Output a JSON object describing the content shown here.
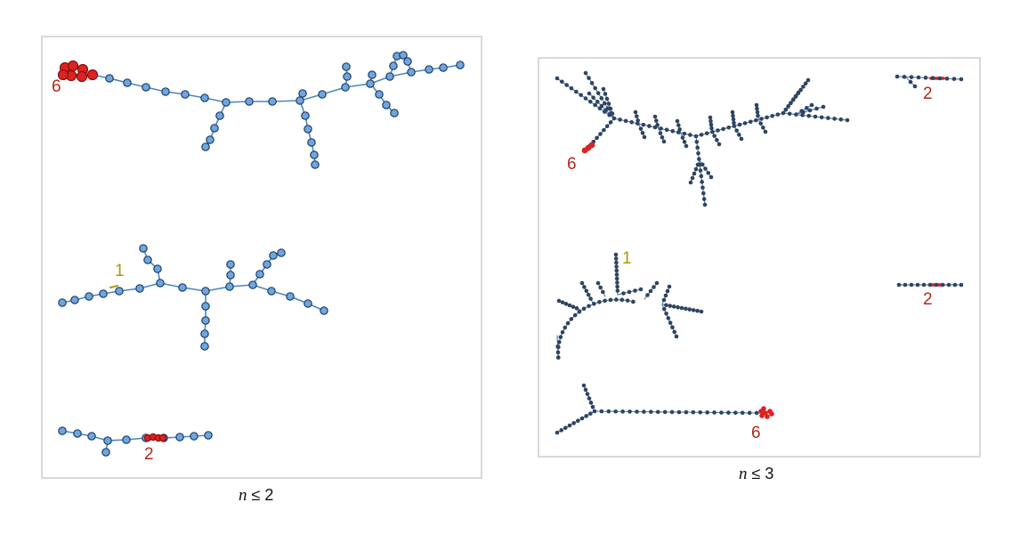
{
  "colors": {
    "left_node": "#6fa6de",
    "left_node_stroke": "#1f3f66",
    "left_edge": "#4d86c0",
    "right_node": "#2e4460",
    "right_edge": "#5b86b3",
    "highlight": "#dd2222",
    "label_red": "#b02a1e",
    "label_olive": "#a39c10"
  },
  "panels": [
    {
      "caption_var": "n",
      "caption_rest": " ≤ 2",
      "labels": [
        "6",
        "1",
        "2"
      ]
    },
    {
      "caption_var": "n",
      "caption_rest": " ≤ 3",
      "labels": [
        "6",
        "2",
        "1",
        "2",
        "6"
      ]
    }
  ]
}
